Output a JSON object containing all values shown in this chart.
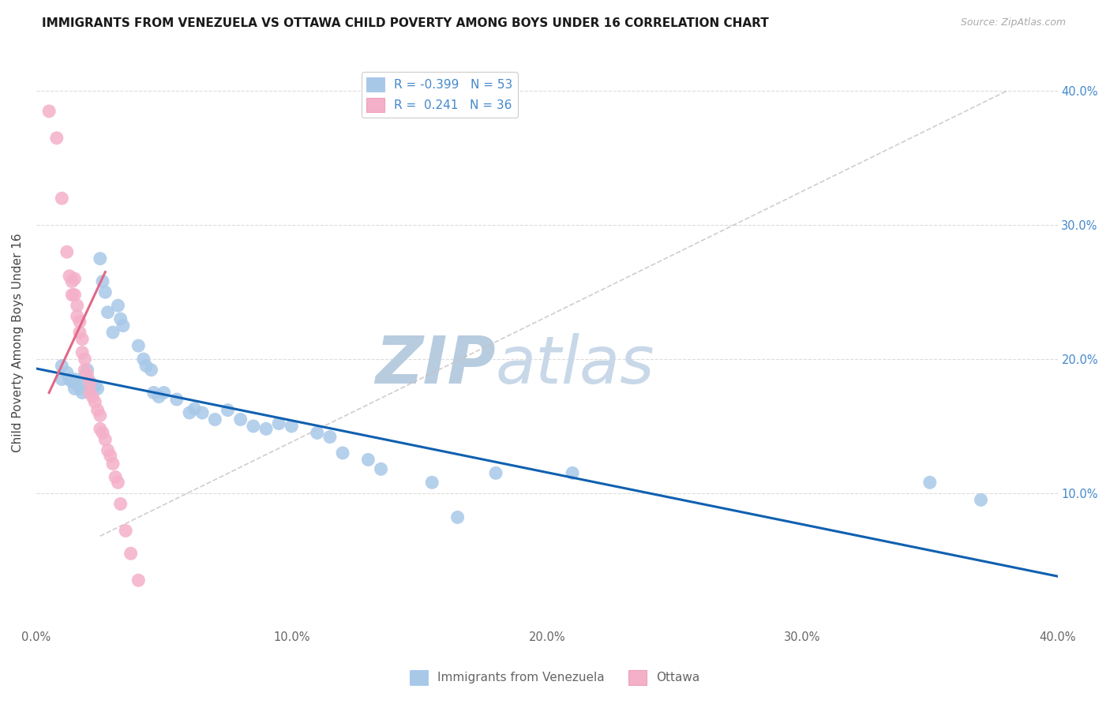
{
  "title": "IMMIGRANTS FROM VENEZUELA VS OTTAWA CHILD POVERTY AMONG BOYS UNDER 16 CORRELATION CHART",
  "source": "Source: ZipAtlas.com",
  "ylabel": "Child Poverty Among Boys Under 16",
  "yticks": [
    0.0,
    0.1,
    0.2,
    0.3,
    0.4
  ],
  "ytick_labels_right": [
    "",
    "10.0%",
    "20.0%",
    "30.0%",
    "40.0%"
  ],
  "xticks": [
    0.0,
    0.1,
    0.2,
    0.3,
    0.4
  ],
  "xtick_labels": [
    "0.0%",
    "10.0%",
    "20.0%",
    "30.0%",
    "40.0%"
  ],
  "xlim": [
    0.0,
    0.4
  ],
  "ylim": [
    0.0,
    0.425
  ],
  "watermark_zip": "ZIP",
  "watermark_atlas": "atlas",
  "legend_blue_r": "R = -0.399",
  "legend_blue_n": "N = 53",
  "legend_pink_r": "R =  0.241",
  "legend_pink_n": "N = 36",
  "blue_scatter": [
    [
      0.01,
      0.195
    ],
    [
      0.01,
      0.185
    ],
    [
      0.012,
      0.19
    ],
    [
      0.013,
      0.185
    ],
    [
      0.014,
      0.183
    ],
    [
      0.015,
      0.185
    ],
    [
      0.015,
      0.178
    ],
    [
      0.016,
      0.182
    ],
    [
      0.017,
      0.178
    ],
    [
      0.018,
      0.175
    ],
    [
      0.019,
      0.188
    ],
    [
      0.02,
      0.192
    ],
    [
      0.021,
      0.183
    ],
    [
      0.022,
      0.178
    ],
    [
      0.023,
      0.18
    ],
    [
      0.024,
      0.178
    ],
    [
      0.025,
      0.275
    ],
    [
      0.026,
      0.258
    ],
    [
      0.027,
      0.25
    ],
    [
      0.028,
      0.235
    ],
    [
      0.03,
      0.22
    ],
    [
      0.032,
      0.24
    ],
    [
      0.033,
      0.23
    ],
    [
      0.034,
      0.225
    ],
    [
      0.04,
      0.21
    ],
    [
      0.042,
      0.2
    ],
    [
      0.043,
      0.195
    ],
    [
      0.045,
      0.192
    ],
    [
      0.046,
      0.175
    ],
    [
      0.048,
      0.172
    ],
    [
      0.05,
      0.175
    ],
    [
      0.055,
      0.17
    ],
    [
      0.06,
      0.16
    ],
    [
      0.062,
      0.163
    ],
    [
      0.065,
      0.16
    ],
    [
      0.07,
      0.155
    ],
    [
      0.075,
      0.162
    ],
    [
      0.08,
      0.155
    ],
    [
      0.085,
      0.15
    ],
    [
      0.09,
      0.148
    ],
    [
      0.095,
      0.152
    ],
    [
      0.1,
      0.15
    ],
    [
      0.11,
      0.145
    ],
    [
      0.115,
      0.142
    ],
    [
      0.12,
      0.13
    ],
    [
      0.13,
      0.125
    ],
    [
      0.135,
      0.118
    ],
    [
      0.155,
      0.108
    ],
    [
      0.165,
      0.082
    ],
    [
      0.18,
      0.115
    ],
    [
      0.21,
      0.115
    ],
    [
      0.35,
      0.108
    ],
    [
      0.37,
      0.095
    ]
  ],
  "pink_scatter": [
    [
      0.005,
      0.385
    ],
    [
      0.008,
      0.365
    ],
    [
      0.01,
      0.32
    ],
    [
      0.012,
      0.28
    ],
    [
      0.013,
      0.262
    ],
    [
      0.014,
      0.258
    ],
    [
      0.014,
      0.248
    ],
    [
      0.015,
      0.26
    ],
    [
      0.015,
      0.248
    ],
    [
      0.016,
      0.24
    ],
    [
      0.016,
      0.232
    ],
    [
      0.017,
      0.228
    ],
    [
      0.017,
      0.22
    ],
    [
      0.018,
      0.215
    ],
    [
      0.018,
      0.205
    ],
    [
      0.019,
      0.2
    ],
    [
      0.019,
      0.192
    ],
    [
      0.02,
      0.188
    ],
    [
      0.021,
      0.182
    ],
    [
      0.021,
      0.175
    ],
    [
      0.022,
      0.172
    ],
    [
      0.023,
      0.168
    ],
    [
      0.024,
      0.162
    ],
    [
      0.025,
      0.158
    ],
    [
      0.025,
      0.148
    ],
    [
      0.026,
      0.145
    ],
    [
      0.027,
      0.14
    ],
    [
      0.028,
      0.132
    ],
    [
      0.029,
      0.128
    ],
    [
      0.03,
      0.122
    ],
    [
      0.031,
      0.112
    ],
    [
      0.032,
      0.108
    ],
    [
      0.033,
      0.092
    ],
    [
      0.035,
      0.072
    ],
    [
      0.037,
      0.055
    ],
    [
      0.04,
      0.035
    ]
  ],
  "blue_line": [
    [
      0.0,
      0.193
    ],
    [
      0.4,
      0.038
    ]
  ],
  "pink_line": [
    [
      0.005,
      0.175
    ],
    [
      0.027,
      0.265
    ]
  ],
  "gray_dash_line": [
    [
      0.025,
      0.068
    ],
    [
      0.38,
      0.4
    ]
  ],
  "blue_color": "#a8c8e8",
  "pink_color": "#f4b0c8",
  "blue_line_color": "#1060b0",
  "pink_line_color": "#e06888",
  "gray_dash_color": "#c8c0c0",
  "grid_color": "#d8d8d8",
  "title_color": "#1a1a1a",
  "source_color": "#aaaaaa",
  "watermark_zip_color": "#b8cce0",
  "watermark_atlas_color": "#c8d8e8",
  "right_axis_color": "#4488cc",
  "ylabel_color": "#444444",
  "tick_label_color": "#666666"
}
